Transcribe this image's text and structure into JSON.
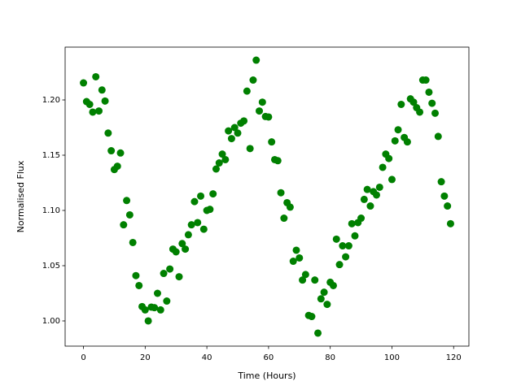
{
  "chart_data": {
    "type": "scatter",
    "x_label": "Time (Hours)",
    "y_label": "Normalised Flux",
    "series": [
      {
        "color": "#008000",
        "x": [
          0,
          1,
          2,
          3,
          4,
          5,
          6,
          7,
          8,
          9,
          10,
          11,
          12,
          13,
          14,
          15,
          16,
          17,
          18,
          19,
          20,
          21,
          22,
          23,
          24,
          25,
          26,
          27,
          28,
          29,
          30,
          31,
          32,
          33,
          34,
          35,
          36,
          37,
          38,
          39,
          40,
          41,
          42,
          43,
          44,
          45,
          46,
          47,
          48,
          49,
          50,
          51,
          52,
          53,
          54,
          55,
          56,
          57,
          58,
          59,
          60,
          61,
          62,
          63,
          64,
          65,
          66,
          67,
          68,
          69,
          70,
          71,
          72,
          73,
          74,
          75,
          76,
          77,
          78,
          79,
          80,
          81,
          82,
          83,
          84,
          85,
          86,
          87,
          88,
          89,
          90,
          91,
          92,
          93,
          94,
          95,
          96,
          97,
          98,
          99,
          100,
          101,
          102,
          103,
          104,
          105,
          106,
          107,
          108,
          109,
          110,
          111,
          112,
          113,
          114,
          115,
          116,
          117,
          118,
          119
        ],
        "values": [
          1.2154,
          1.1985,
          1.196,
          1.189,
          1.221,
          1.19,
          1.209,
          1.199,
          1.17,
          1.154,
          1.137,
          1.14,
          1.152,
          1.087,
          1.109,
          1.096,
          1.071,
          1.041,
          1.032,
          1.013,
          1.01,
          1.0,
          1.0125,
          1.012,
          1.025,
          1.01,
          1.043,
          1.018,
          1.047,
          1.065,
          1.0625,
          1.04,
          1.07,
          1.065,
          1.078,
          1.087,
          1.108,
          1.089,
          1.113,
          1.083,
          1.1,
          1.101,
          1.115,
          1.1375,
          1.143,
          1.151,
          1.146,
          1.172,
          1.165,
          1.175,
          1.17,
          1.179,
          1.181,
          1.208,
          1.156,
          1.218,
          1.236,
          1.19,
          1.198,
          1.185,
          1.1846,
          1.162,
          1.146,
          1.145,
          1.116,
          1.093,
          1.107,
          1.103,
          1.054,
          1.064,
          1.057,
          1.037,
          1.042,
          1.005,
          1.004,
          1.037,
          0.989,
          1.02,
          1.026,
          1.015,
          1.035,
          1.032,
          1.074,
          1.051,
          1.068,
          1.058,
          1.068,
          1.088,
          1.077,
          1.089,
          1.093,
          1.11,
          1.119,
          1.104,
          1.117,
          1.114,
          1.121,
          1.139,
          1.151,
          1.147,
          1.128,
          1.163,
          1.173,
          1.196,
          1.166,
          1.162,
          1.201,
          1.198,
          1.193,
          1.189,
          1.218,
          1.218,
          1.207,
          1.197,
          1.188,
          1.167,
          1.126,
          1.113,
          1.104,
          1.088
        ]
      }
    ],
    "xlim": [
      -5.95,
      124.95
    ],
    "xticks": [
      0,
      20,
      40,
      60,
      80,
      100,
      120
    ],
    "ylim": [
      0.9772,
      1.2478
    ],
    "yticks": [
      {
        "value": 1.0,
        "label": "1.00"
      },
      1.05,
      {
        "value": 1.1,
        "label": "1.10"
      },
      1.15,
      {
        "value": 1.2,
        "label": "1.20"
      }
    ]
  }
}
